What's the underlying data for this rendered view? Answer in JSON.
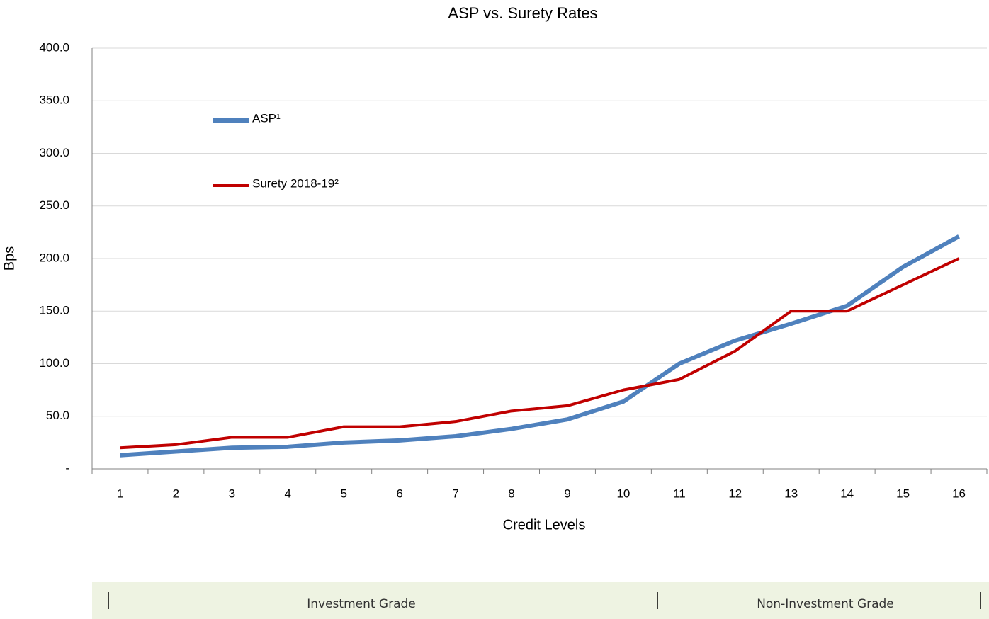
{
  "chart_data": {
    "type": "line",
    "title": "ASP vs. Surety Rates",
    "xlabel": "Credit Levels",
    "ylabel": "Bps",
    "categories": [
      "1",
      "2",
      "3",
      "4",
      "5",
      "6",
      "7",
      "8",
      "9",
      "10",
      "11",
      "12",
      "13",
      "14",
      "15",
      "16"
    ],
    "series": [
      {
        "name": "ASP¹",
        "color": "#4f81bd",
        "values": [
          13,
          16.5,
          20,
          21,
          25,
          27,
          31,
          38,
          47,
          64,
          100,
          122,
          138,
          155,
          192,
          221
        ]
      },
      {
        "name": "Surety 2018-19²",
        "color": "#c00000",
        "values": [
          20,
          23,
          30,
          30,
          40,
          40,
          45,
          55,
          60,
          75,
          85,
          112,
          150,
          150,
          175,
          200
        ]
      }
    ],
    "ylim": [
      0,
      400
    ],
    "yticks": [
      {
        "value": 0,
        "label": "-"
      },
      {
        "value": 50,
        "label": "50.0"
      },
      {
        "value": 100,
        "label": "100.0"
      },
      {
        "value": 150,
        "label": "150.0"
      },
      {
        "value": 200,
        "label": "200.0"
      },
      {
        "value": 250,
        "label": "250.0"
      },
      {
        "value": 300,
        "label": "300.0"
      },
      {
        "value": 350,
        "label": "350.0"
      },
      {
        "value": 400,
        "label": "400.0"
      }
    ],
    "grid": true,
    "legend": "upper left",
    "annotations": [
      "Investment Grade",
      "Non-Investment Grade"
    ]
  }
}
